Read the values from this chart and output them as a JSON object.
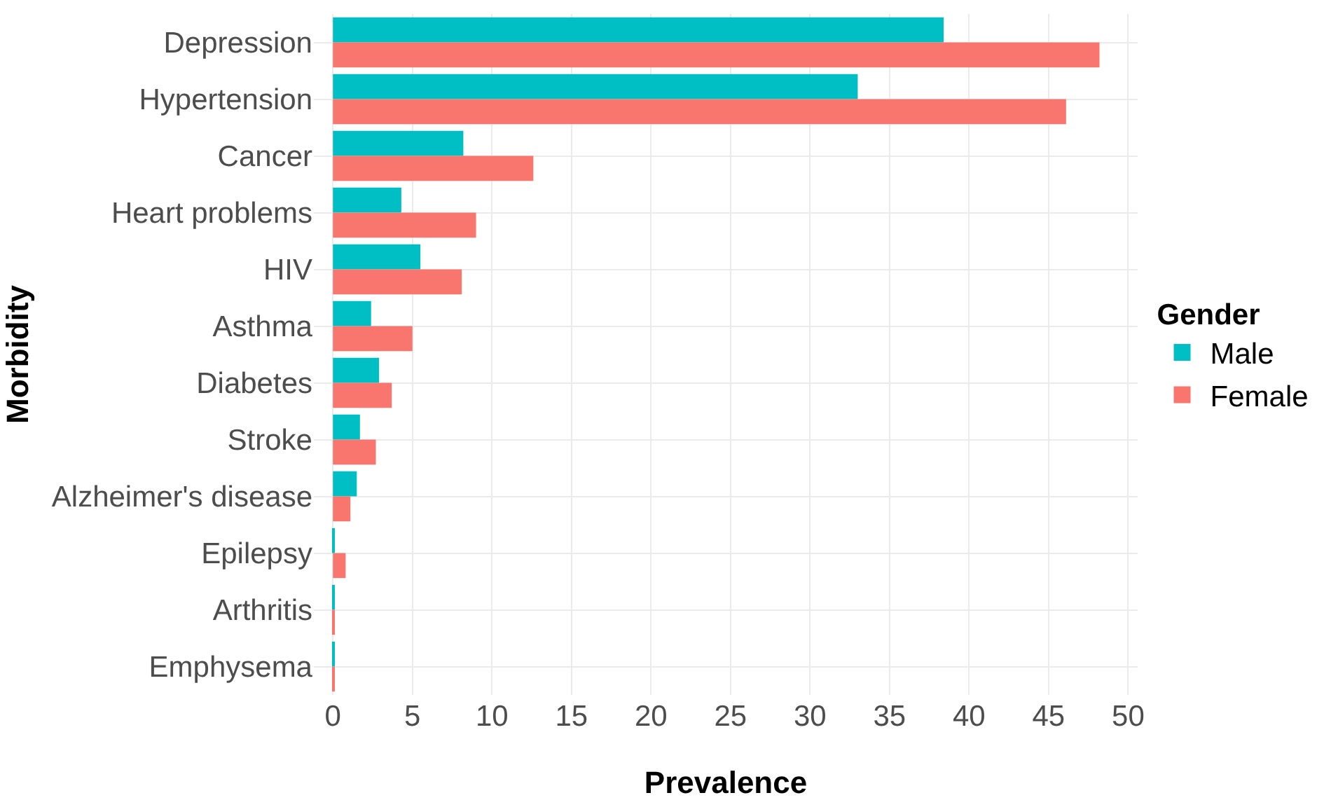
{
  "chart_data": {
    "type": "bar",
    "orientation": "horizontal",
    "xlabel": "Prevalence",
    "ylabel": "Morbidity",
    "legend_title": "Gender",
    "categories": [
      "Depression",
      "Hypertension",
      "Cancer",
      "Heart problems",
      "HIV",
      "Asthma",
      "Diabetes",
      "Stroke",
      "Alzheimer's disease",
      "Epilepsy",
      "Arthritis",
      "Emphysema"
    ],
    "series": [
      {
        "name": "Male",
        "color": "#00bfc4",
        "values": [
          38.4,
          33.0,
          8.2,
          4.3,
          5.5,
          2.4,
          2.9,
          1.7,
          1.5,
          0.1,
          0.1,
          0.1
        ]
      },
      {
        "name": "Female",
        "color": "#f8766d",
        "values": [
          48.2,
          46.1,
          12.6,
          9.0,
          8.1,
          5.0,
          3.7,
          2.7,
          1.1,
          0.8,
          0.1,
          0.1
        ]
      }
    ],
    "xlim": [
      -1.2,
      50.6
    ],
    "xticks": [
      0,
      5,
      10,
      15,
      20,
      25,
      30,
      35,
      40,
      45,
      50
    ],
    "grid": true,
    "legend": "right"
  }
}
